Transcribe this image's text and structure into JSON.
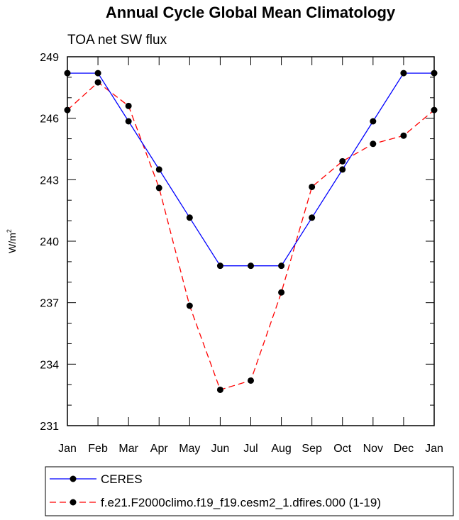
{
  "chart_data": {
    "type": "line",
    "title": "Annual Cycle Global Mean Climatology",
    "subtitle": "TOA net SW flux",
    "ylabel": "W/m",
    "ylabel_superscript": "2",
    "ylim": [
      231,
      249
    ],
    "yticks": [
      231,
      234,
      237,
      240,
      243,
      246,
      249
    ],
    "ytick_labels": [
      "231",
      "234",
      "237",
      "240",
      "243",
      "246",
      "249"
    ],
    "categories": [
      "Jan",
      "Feb",
      "Mar",
      "Apr",
      "May",
      "Jun",
      "Jul",
      "Aug",
      "Sep",
      "Oct",
      "Nov",
      "Dec",
      "Jan"
    ],
    "series": [
      {
        "name": "CERES",
        "color": "#0000ff",
        "style": "solid",
        "values": [
          248.2,
          248.2,
          245.85,
          243.5,
          241.15,
          238.8,
          238.8,
          238.8,
          241.15,
          243.5,
          245.85,
          248.2,
          248.2
        ]
      },
      {
        "name": "f.e21.F2000climo.f19_f19.cesm2_1.dfires.000 (1-19)",
        "color": "#ff0000",
        "style": "dashed",
        "values": [
          246.4,
          247.75,
          246.6,
          242.6,
          236.85,
          232.75,
          233.2,
          237.5,
          242.65,
          243.9,
          244.75,
          245.15,
          246.4
        ]
      }
    ]
  }
}
